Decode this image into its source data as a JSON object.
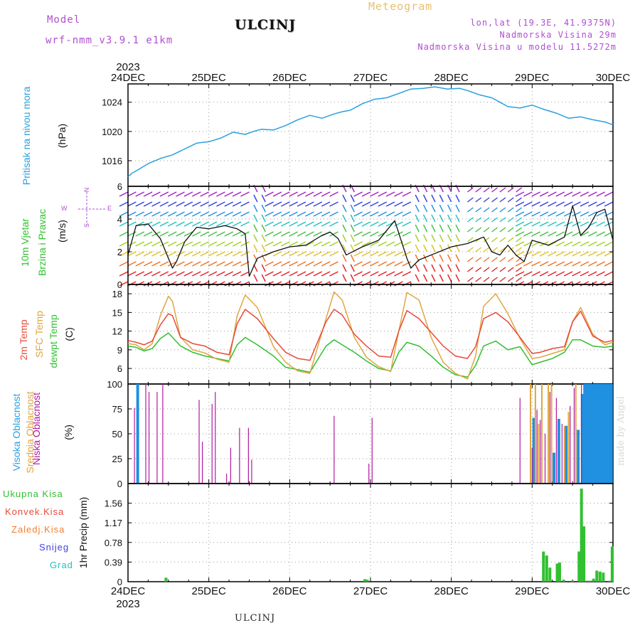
{
  "header": {
    "model_label": "Model",
    "model_run": "wrf-nmm_v3.9.1  e1km",
    "station": "ULCINJ",
    "title": "Meteogram",
    "location": "lon,lat (19.3E, 41.9375N)",
    "altitude": "Nadmorska Visina 29m",
    "model_altitude": "Nadmorska Visina u modelu 11.5272m"
  },
  "footer": {
    "station": "ULCINJ",
    "year": "2023",
    "credit": "made by Angel"
  },
  "time_axis": {
    "top_year": "2023",
    "ticks": [
      "24DEC",
      "25DEC",
      "26DEC",
      "27DEC",
      "28DEC",
      "29DEC",
      "30DEC"
    ]
  },
  "colors": {
    "pressure": "#2aa0e0",
    "temp2m": "#e84a3a",
    "sfc": "#e0a640",
    "dewpt": "#30c030",
    "low_cloud": "#b01aa0",
    "mid_cloud": "#e0a640",
    "high_cloud": "#2090e0",
    "precip_total": "#30c030",
    "precip_conv": "#e84a3a",
    "precip_frz": "#f08030",
    "precip_snow": "#4040e0",
    "precip_grad": "#20c0c0",
    "wind_label": "#30c030",
    "compass": "#b04fd0"
  },
  "panels": {
    "pressure": {
      "label": "Pritisak na nivou mora",
      "unit": "(hPa)"
    },
    "wind": {
      "label1": "10m Vjetar",
      "label2": "Brzina i Pravac",
      "unit": "(m/s)",
      "compass_n": "N",
      "compass_s": "S",
      "compass_w": "W",
      "compass_e": "E"
    },
    "temp": {
      "label1": "2m Temp",
      "label2": "SFC Temp",
      "label3": "dewpt Temp",
      "unit": "(C)"
    },
    "cloud": {
      "label1": "Visoka Oblacnost",
      "label2": "Srednja Oblacnost",
      "label3": "Niska Oblacnost",
      "unit": "(%)"
    },
    "precip": {
      "label": "1hr Precip (mm)",
      "legend": [
        "Ukupna Kisa",
        "Konvek.Kisa",
        "Zaledj.Kisa",
        "Snijeg",
        "Grad"
      ]
    }
  },
  "chart_data": [
    {
      "type": "line",
      "name": "pressure",
      "xlabel": "",
      "ylabel": "(hPa)",
      "ylim": [
        1012.5,
        1026.5
      ],
      "yticks": [
        1016,
        1020,
        1024
      ],
      "series": [
        {
          "name": "Pritisak na nivou mora",
          "x": [
            0,
            0.05,
            0.1,
            0.25,
            0.4,
            0.55,
            0.7,
            0.85,
            1.0,
            1.15,
            1.3,
            1.45,
            1.55,
            1.65,
            1.8,
            1.95,
            2.1,
            2.25,
            2.4,
            2.55,
            2.65,
            2.75,
            2.9,
            3.05,
            3.2,
            3.35,
            3.5,
            3.65,
            3.8,
            3.95,
            4.1,
            4.2,
            4.35,
            4.5,
            4.6,
            4.7,
            4.85,
            5.0,
            5.15,
            5.3,
            5.45,
            5.6,
            5.75,
            5.9,
            6.0
          ],
          "y": [
            1013.8,
            1014.3,
            1014.6,
            1015.6,
            1016.3,
            1016.8,
            1017.6,
            1018.4,
            1018.6,
            1019.1,
            1019.9,
            1019.6,
            1020.0,
            1020.3,
            1020.2,
            1020.8,
            1021.6,
            1022.2,
            1021.8,
            1022.4,
            1022.7,
            1022.9,
            1023.8,
            1024.4,
            1024.6,
            1025.2,
            1025.8,
            1025.9,
            1026.1,
            1025.8,
            1025.9,
            1025.6,
            1025.0,
            1024.6,
            1024.0,
            1023.4,
            1023.2,
            1023.6,
            1023.0,
            1022.5,
            1021.8,
            1022.0,
            1021.6,
            1021.3,
            1020.9
          ]
        }
      ]
    },
    {
      "type": "line",
      "name": "wind",
      "xlabel": "",
      "ylabel": "(m/s)",
      "ylim": [
        0,
        6
      ],
      "yticks": [
        0,
        2,
        4,
        6
      ],
      "series": [
        {
          "name": "Brzina",
          "x": [
            0,
            0.1,
            0.25,
            0.4,
            0.55,
            0.6,
            0.7,
            0.85,
            1.0,
            1.2,
            1.35,
            1.45,
            1.5,
            1.6,
            1.8,
            2.0,
            2.2,
            2.4,
            2.5,
            2.6,
            2.7,
            2.9,
            3.1,
            3.3,
            3.45,
            3.5,
            3.6,
            3.8,
            4.0,
            4.2,
            4.4,
            4.5,
            4.6,
            4.7,
            4.8,
            4.9,
            5.0,
            5.2,
            5.4,
            5.5,
            5.6,
            5.7,
            5.8,
            5.9,
            6.0
          ],
          "y": [
            1.8,
            3.6,
            3.7,
            2.8,
            1.0,
            1.4,
            2.6,
            3.5,
            3.4,
            3.6,
            3.4,
            3.1,
            0.5,
            1.6,
            2.0,
            2.3,
            2.4,
            3.0,
            3.2,
            2.8,
            1.8,
            2.3,
            2.7,
            3.9,
            1.6,
            1.0,
            1.5,
            1.9,
            2.3,
            2.5,
            2.9,
            2.0,
            1.8,
            2.4,
            1.8,
            1.4,
            2.7,
            2.4,
            2.9,
            4.8,
            3.0,
            3.5,
            4.4,
            4.6,
            2.7
          ]
        }
      ]
    },
    {
      "type": "line",
      "name": "temperature",
      "xlabel": "",
      "ylabel": "(C)",
      "ylim": [
        3.5,
        19.5
      ],
      "yticks": [
        6,
        9,
        12,
        15,
        18
      ],
      "series": [
        {
          "name": "2m Temp",
          "x": [
            0,
            0.1,
            0.2,
            0.3,
            0.4,
            0.5,
            0.55,
            0.65,
            0.8,
            0.95,
            1.1,
            1.25,
            1.35,
            1.45,
            1.6,
            1.8,
            1.95,
            2.1,
            2.25,
            2.45,
            2.55,
            2.65,
            2.8,
            2.95,
            3.1,
            3.25,
            3.35,
            3.45,
            3.6,
            3.75,
            3.9,
            4.05,
            4.2,
            4.3,
            4.4,
            4.55,
            4.7,
            4.85,
            5.0,
            5.1,
            5.25,
            5.4,
            5.5,
            5.6,
            5.75,
            5.9,
            6.0
          ],
          "y": [
            10.5,
            10.2,
            9.8,
            10.4,
            13.0,
            14.8,
            14.5,
            11.0,
            10.0,
            9.6,
            8.6,
            8.2,
            13.2,
            15.5,
            14.0,
            10.8,
            8.6,
            7.6,
            7.3,
            13.5,
            15.5,
            14.6,
            11.5,
            9.6,
            8.0,
            7.8,
            12.0,
            15.3,
            14.0,
            11.8,
            9.6,
            8.0,
            7.6,
            9.5,
            14.0,
            15.0,
            13.5,
            11.0,
            8.4,
            8.6,
            9.2,
            9.5,
            13.5,
            15.2,
            11.2,
            10.2,
            10.5
          ]
        },
        {
          "name": "SFC Temp",
          "x": [
            0,
            0.1,
            0.2,
            0.3,
            0.4,
            0.5,
            0.55,
            0.65,
            0.8,
            0.95,
            1.1,
            1.25,
            1.35,
            1.45,
            1.6,
            1.8,
            1.95,
            2.1,
            2.25,
            2.45,
            2.55,
            2.65,
            2.8,
            2.95,
            3.1,
            3.25,
            3.35,
            3.45,
            3.6,
            3.75,
            3.9,
            4.05,
            4.2,
            4.3,
            4.4,
            4.55,
            4.7,
            4.85,
            5.0,
            5.1,
            5.25,
            5.4,
            5.5,
            5.6,
            5.75,
            5.9,
            6.0
          ],
          "y": [
            10.0,
            9.8,
            9.0,
            10.0,
            14.5,
            17.6,
            16.8,
            11.0,
            9.0,
            8.5,
            7.5,
            7.0,
            14.5,
            17.8,
            15.8,
            9.5,
            7.0,
            5.6,
            5.2,
            14.0,
            18.3,
            17.0,
            11.0,
            7.8,
            6.3,
            5.5,
            12.0,
            18.2,
            17.0,
            11.0,
            7.0,
            5.2,
            4.3,
            8.0,
            16.0,
            18.0,
            14.8,
            10.8,
            7.6,
            7.8,
            8.4,
            9.0,
            13.5,
            15.8,
            11.5,
            9.8,
            10.2
          ]
        },
        {
          "name": "dewpt Temp",
          "x": [
            0,
            0.1,
            0.2,
            0.3,
            0.4,
            0.5,
            0.55,
            0.65,
            0.8,
            0.95,
            1.1,
            1.25,
            1.35,
            1.45,
            1.6,
            1.8,
            1.95,
            2.1,
            2.25,
            2.45,
            2.55,
            2.65,
            2.8,
            2.95,
            3.1,
            3.25,
            3.35,
            3.45,
            3.6,
            3.75,
            3.9,
            4.05,
            4.2,
            4.3,
            4.4,
            4.55,
            4.7,
            4.85,
            5.0,
            5.1,
            5.25,
            5.4,
            5.5,
            5.6,
            5.75,
            5.9,
            6.0
          ],
          "y": [
            9.6,
            9.4,
            8.8,
            9.2,
            10.8,
            11.7,
            11.0,
            9.6,
            8.6,
            8.0,
            7.6,
            7.2,
            9.8,
            11.0,
            9.8,
            8.0,
            6.2,
            5.8,
            5.4,
            9.6,
            10.6,
            9.8,
            8.6,
            7.2,
            6.0,
            5.6,
            8.6,
            10.2,
            9.6,
            8.0,
            6.2,
            5.0,
            4.6,
            6.5,
            9.6,
            10.4,
            9.0,
            9.5,
            6.6,
            7.0,
            7.6,
            8.6,
            10.6,
            10.6,
            9.6,
            9.4,
            9.6
          ]
        }
      ]
    },
    {
      "type": "bar",
      "name": "cloud",
      "xlabel": "",
      "ylabel": "(%)",
      "ylim": [
        0,
        100
      ],
      "yticks": [
        0,
        25,
        50,
        75,
        100
      ],
      "series": [
        {
          "name": "Visoka Oblacnost",
          "x": [
            0.12,
            5.02,
            5.27,
            5.33,
            5.42,
            5.57,
            5.62,
            5.65,
            5.68,
            5.71,
            5.74,
            5.77,
            5.8,
            5.83,
            5.86,
            5.89,
            5.92,
            5.95,
            5.98
          ],
          "y": [
            100,
            66,
            31,
            65,
            58,
            54,
            90,
            100,
            100,
            100,
            100,
            100,
            100,
            100,
            100,
            100,
            100,
            100,
            100
          ]
        },
        {
          "name": "Srednja Oblacnost",
          "x": [
            4.98,
            5.04,
            5.08,
            5.12,
            5.2,
            5.24,
            5.4,
            5.45,
            5.54
          ],
          "y": [
            100,
            100,
            60,
            100,
            100,
            100,
            58,
            72,
            100
          ]
        },
        {
          "name": "Niska Oblacnost",
          "x": [
            0.08,
            0.22,
            0.26,
            0.36,
            0.43,
            0.88,
            0.92,
            1.04,
            1.08,
            1.22,
            1.27,
            1.38,
            1.49,
            1.53,
            2.55,
            2.98,
            3.02,
            4.85,
            5.0,
            5.06,
            5.1,
            5.16,
            5.22,
            5.3,
            5.37,
            5.47,
            5.52,
            5.61
          ],
          "y": [
            76,
            100,
            92,
            92,
            100,
            84,
            42,
            80,
            92,
            10,
            36,
            56,
            56,
            24,
            68,
            20,
            66,
            86,
            36,
            74,
            64,
            50,
            92,
            86,
            60,
            78,
            96,
            100
          ]
        }
      ]
    },
    {
      "type": "bar",
      "name": "precip",
      "xlabel": "",
      "ylabel": "1hr Precip (mm)",
      "ylim": [
        0,
        1.95
      ],
      "yticks": [
        0,
        0.39,
        0.78,
        1.17,
        1.56
      ],
      "series": [
        {
          "name": "Ukupna Kisa",
          "x": [
            0.47,
            2.93,
            2.96,
            5.14,
            5.18,
            5.22,
            5.31,
            5.34,
            5.39,
            5.5,
            5.58,
            5.61,
            5.64,
            5.68,
            5.72,
            5.76,
            5.8,
            5.84,
            5.88,
            5.96,
            5.99
          ],
          "y": [
            0.08,
            0.05,
            0.04,
            0.6,
            0.52,
            0.28,
            0.36,
            0.38,
            0.04,
            0.02,
            0.6,
            1.85,
            1.1,
            0.02,
            0.02,
            0.06,
            0.22,
            0.2,
            0.18,
            0.02,
            0.7
          ]
        }
      ]
    }
  ]
}
